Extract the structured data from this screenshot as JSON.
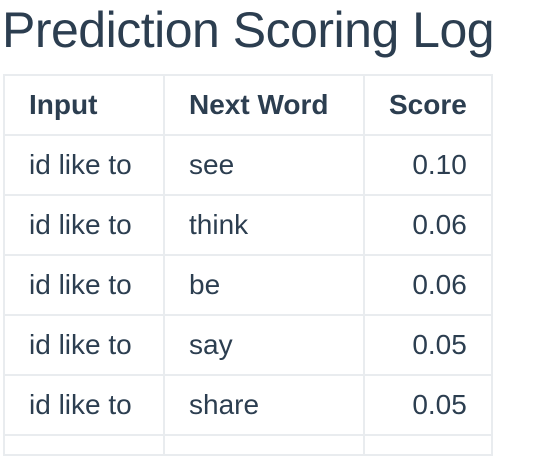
{
  "title": "Prediction Scoring Log",
  "table": {
    "headers": {
      "input": "Input",
      "next_word": "Next Word",
      "score": "Score"
    },
    "rows": [
      {
        "input": "id like to",
        "next_word": "see",
        "score": "0.10"
      },
      {
        "input": "id like to",
        "next_word": "think",
        "score": "0.06"
      },
      {
        "input": "id like to",
        "next_word": "be",
        "score": "0.06"
      },
      {
        "input": "id like to",
        "next_word": "say",
        "score": "0.05"
      },
      {
        "input": "id like to",
        "next_word": "share",
        "score": "0.05"
      }
    ]
  }
}
